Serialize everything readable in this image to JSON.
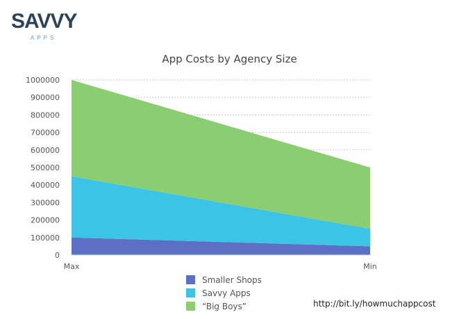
{
  "logo": {
    "text": "SAVVY",
    "subtext": "APPS"
  },
  "chart_data": {
    "type": "area",
    "stacked": true,
    "title": "App Costs by Agency Size",
    "categories": [
      "Max",
      "Min"
    ],
    "series": [
      {
        "name": "Smaller Shops",
        "values": [
          100000,
          50000
        ],
        "color": "#5b6fc4"
      },
      {
        "name": "Savvy Apps",
        "values": [
          350000,
          100000
        ],
        "color": "#3cc4e6"
      },
      {
        "name": "“Big Boys”",
        "values": [
          550000,
          350000
        ],
        "color": "#8bce72"
      }
    ],
    "ylim": [
      0,
      1000000
    ],
    "yticks": [
      0,
      100000,
      200000,
      300000,
      400000,
      500000,
      600000,
      700000,
      800000,
      900000,
      1000000
    ],
    "grid": true,
    "legend_position": "bottom"
  },
  "source_url": "http://bit.ly/howmuchappcost"
}
